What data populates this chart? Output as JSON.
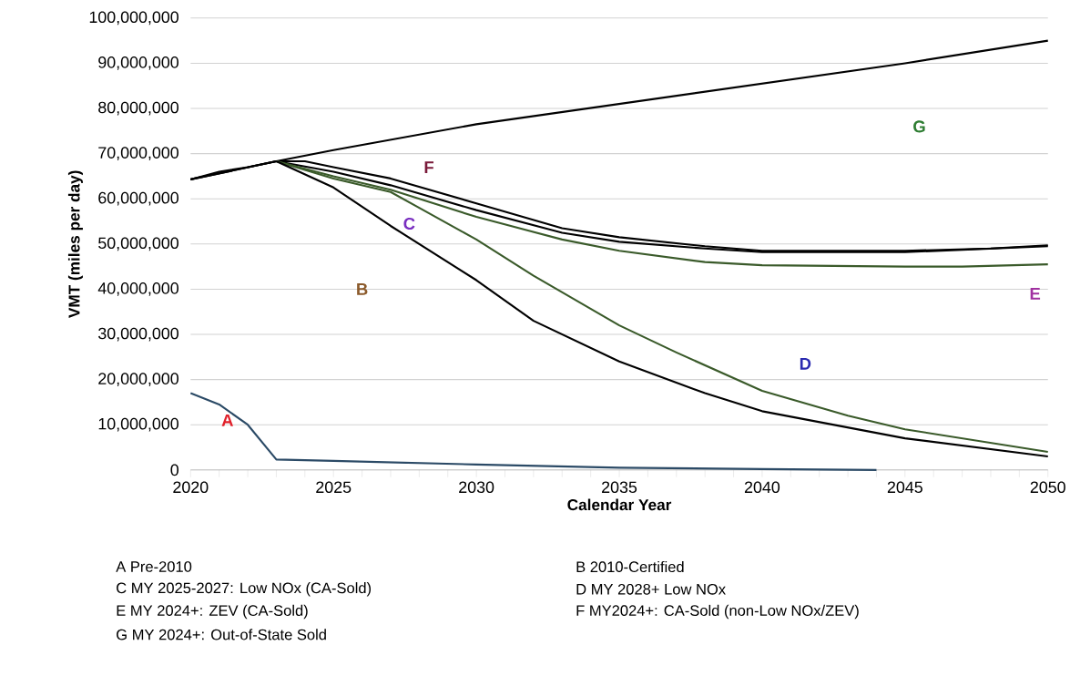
{
  "chart_data": {
    "type": "line",
    "xlabel": "Calendar Year",
    "ylabel": "VMT (miles per day)",
    "xlim": [
      2020,
      2050
    ],
    "xticks": [
      2020,
      2025,
      2030,
      2035,
      2040,
      2045,
      2050
    ],
    "ylim": [
      0,
      100000000
    ],
    "yticks": [
      0,
      {
        "value": 10000000,
        "label": "10,000,000"
      },
      {
        "value": 20000000,
        "label": "20,000,000"
      },
      {
        "value": 30000000,
        "label": "30,000,000"
      },
      {
        "value": 40000000,
        "label": "40,000,000"
      },
      {
        "value": 50000000,
        "label": "50,000,000"
      },
      {
        "value": 60000000,
        "label": "60,000,000"
      },
      {
        "value": 70000000,
        "label": "70,000,000"
      },
      {
        "value": 80000000,
        "label": "80,000,000"
      },
      {
        "value": 90000000,
        "label": "90,000,000"
      },
      {
        "value": 100000000,
        "label": "100,000,000"
      }
    ],
    "grid": "y",
    "marker": "none",
    "line_style": "solid",
    "series": [
      {
        "color": "#000000",
        "x": [
          2020,
          2021,
          2022,
          2023,
          2025,
          2030,
          2035,
          2040,
          2045,
          2050
        ],
        "values": [
          64300000,
          66000000,
          67000000,
          68300000,
          70800000,
          76500000,
          81000000,
          85500000,
          90000000,
          95000000
        ]
      },
      {
        "color": "#000000",
        "x": [
          2020,
          2023,
          2024,
          2025,
          2027,
          2030,
          2033,
          2035,
          2038,
          2040,
          2045,
          2048,
          2050
        ],
        "values": [
          64300000,
          68300000,
          68300000,
          67000000,
          64500000,
          59000000,
          53500000,
          51500000,
          49500000,
          48500000,
          48500000,
          49000000,
          49700000
        ]
      },
      {
        "color": "#000000",
        "x": [
          2023,
          2025,
          2027,
          2030,
          2033,
          2035,
          2038,
          2040,
          2045,
          2050
        ],
        "values": [
          68300000,
          66000000,
          63000000,
          57500000,
          52500000,
          50500000,
          49000000,
          48200000,
          48200000,
          49500000
        ]
      },
      {
        "color": "#3a5a2a",
        "x": [
          2023,
          2025,
          2027,
          2030,
          2033,
          2035,
          2038,
          2040,
          2045,
          2047,
          2050
        ],
        "values": [
          68300000,
          65000000,
          62000000,
          56000000,
          51000000,
          48500000,
          46000000,
          45300000,
          45000000,
          45000000,
          45500000
        ]
      },
      {
        "color": "#3a5a2a",
        "x": [
          2023,
          2025,
          2027,
          2028,
          2030,
          2032,
          2035,
          2037,
          2040,
          2043,
          2045,
          2050
        ],
        "values": [
          68300000,
          64500000,
          61500000,
          58000000,
          51000000,
          43000000,
          32000000,
          26000000,
          17500000,
          12000000,
          9000000,
          4000000
        ]
      },
      {
        "color": "#000000",
        "x": [
          2020,
          2023,
          2025,
          2027,
          2028,
          2030,
          2032,
          2035,
          2038,
          2040,
          2045,
          2050
        ],
        "values": [
          64300000,
          68300000,
          62500000,
          54000000,
          50000000,
          42000000,
          33000000,
          24000000,
          17000000,
          13000000,
          7000000,
          3000000
        ]
      },
      {
        "color": "#2b4a66",
        "x": [
          2020,
          2021,
          2022,
          2023,
          2025,
          2030,
          2035,
          2040,
          2044
        ],
        "values": [
          17000000,
          14500000,
          10000000,
          2300000,
          2000000,
          1200000,
          500000,
          200000,
          0
        ]
      }
    ],
    "annotations": [
      "A",
      "B",
      "C",
      "D",
      "E",
      "F",
      "G",
      "A Pre-2010",
      "B 2010-Certified",
      "C MY 2025-2027: Low NOx (CA-Sold)",
      "D MY 2028+ Low NOx",
      "E MY 2024+: ZEV (CA-Sold)",
      "F MY2024+: CA-Sold (non-Low NOx/ZEV)",
      "G MY 2024+: Out-of-State Sold"
    ]
  }
}
